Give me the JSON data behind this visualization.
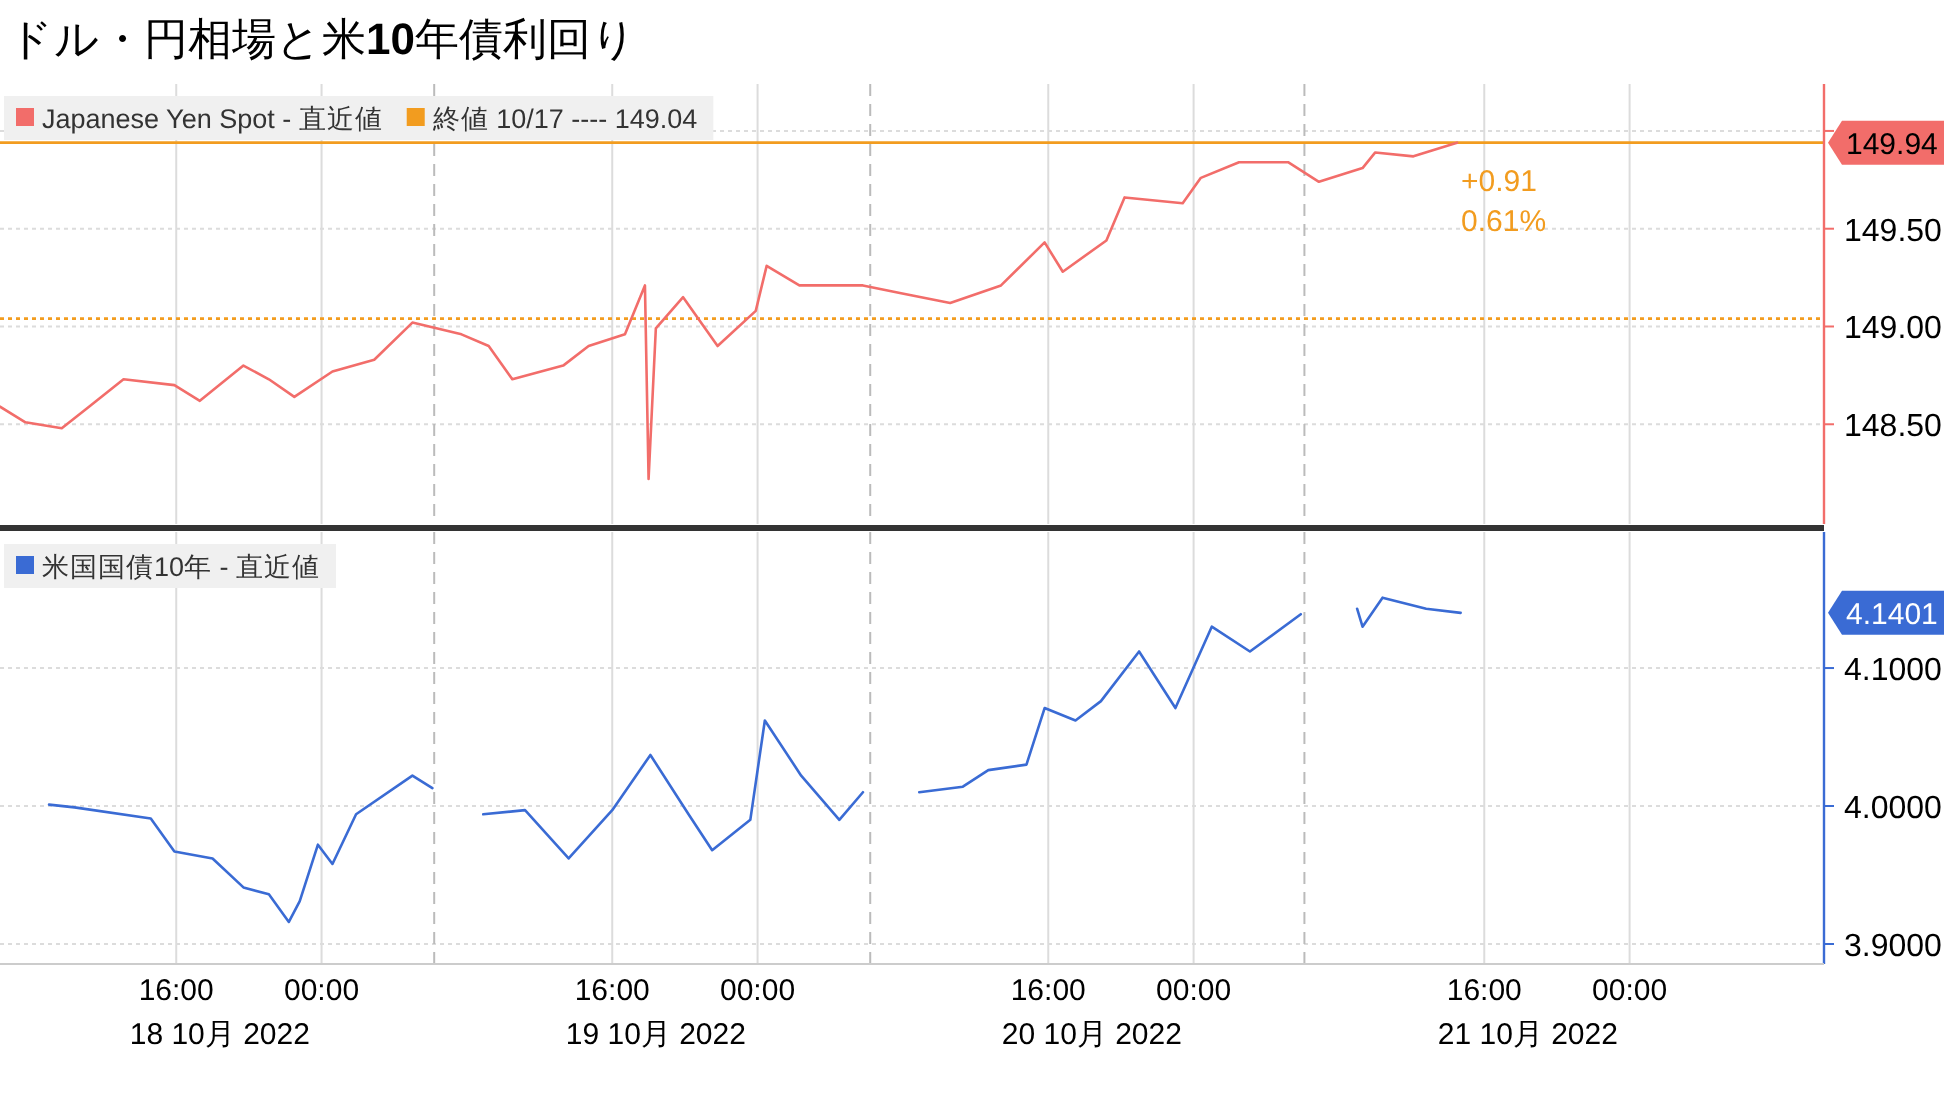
{
  "chart_data": [
    {
      "type": "line",
      "title": "ドル・円相場と米**10**年債利回り",
      "x": [
        "2022-10-18T06:18",
        "2022-10-18T07:42",
        "2022-10-18T09:42",
        "2022-10-18T11:12",
        "2022-10-18T13:06",
        "2022-10-18T15:54",
        "2022-10-18T17:18",
        "2022-10-18T19:42",
        "2022-10-18T21:06",
        "2022-10-18T22:30",
        "2022-10-19T00:36",
        "2022-10-19T02:54",
        "2022-10-19T05:00",
        "2022-10-19T07:42",
        "2022-10-19T09:12",
        "2022-10-19T10:30",
        "2022-10-19T13:18",
        "2022-10-19T14:42",
        "2022-10-19T16:42",
        "2022-10-19T17:48",
        "2022-10-19T18:00",
        "2022-10-19T18:24",
        "2022-10-19T19:54",
        "2022-10-19T21:48",
        "2022-10-19T23:54",
        "2022-10-20T00:30",
        "2022-10-20T02:18",
        "2022-10-20T05:48",
        "2022-10-20T07:54",
        "2022-10-20T10:36",
        "2022-10-20T13:24",
        "2022-10-20T15:48",
        "2022-10-20T16:48",
        "2022-10-20T19:12",
        "2022-10-20T20:12",
        "2022-10-20T23:24",
        "2022-10-21T00:24",
        "2022-10-21T02:30",
        "2022-10-21T05:12",
        "2022-10-21T06:54",
        "2022-10-21T09:18",
        "2022-10-21T10:00",
        "2022-10-21T12:06",
        "2022-10-21T14:30"
      ],
      "series": [
        {
          "name": "Japanese Yen Spot - 直近値",
          "color": "#f26d6a",
          "values": [
            148.59,
            148.51,
            148.48,
            148.59,
            148.73,
            148.7,
            148.62,
            148.8,
            148.73,
            148.64,
            148.77,
            148.83,
            149.02,
            148.96,
            148.9,
            148.73,
            148.8,
            148.9,
            148.96,
            149.21,
            148.22,
            148.99,
            149.15,
            148.9,
            149.08,
            149.31,
            149.21,
            149.21,
            149.17,
            149.12,
            149.21,
            149.43,
            149.28,
            149.44,
            149.66,
            149.63,
            149.76,
            149.84,
            149.84,
            149.74,
            149.81,
            149.89,
            149.87,
            149.94
          ]
        }
      ],
      "xlim": [
        "2022-10-18T06:18",
        "2022-10-22T10:42"
      ],
      "xticks": [
        {
          "value": "2022-10-18T16:00",
          "label": null
        },
        {
          "value": "2022-10-19T00:00",
          "label": null
        },
        {
          "value": "2022-10-19T16:00",
          "label": null
        },
        {
          "value": "2022-10-20T00:00",
          "label": null
        },
        {
          "value": "2022-10-20T16:00",
          "label": null
        },
        {
          "value": "2022-10-21T00:00",
          "label": null
        },
        {
          "value": "2022-10-21T16:00",
          "label": null
        },
        {
          "value": "2022-10-22T00:00",
          "label": null
        }
      ],
      "ylim": [
        147.99,
        150.24
      ],
      "yticks": [
        {
          "value": 148.5,
          "label": "148.50"
        },
        {
          "value": 149,
          "label": "149.00"
        },
        {
          "value": 149.5,
          "label": "149.50"
        },
        {
          "value": 150,
          "label": null
        }
      ],
      "tick_labels": "y",
      "grid": true,
      "legend": "top left",
      "ref_lines": [
        {
          "axis": "y",
          "value": 149.04,
          "label": "終値 10/17 ---- 149.04",
          "color": "#f29c1f",
          "line_style": "dotted"
        },
        {
          "axis": "y",
          "value": 149.94,
          "color": "#f29c1f",
          "line_style": "solid"
        },
        {
          "axis": "x",
          "value": "2022-10-19T06:12",
          "color": "#bbbbbb",
          "line_style": "dashed"
        },
        {
          "axis": "x",
          "value": "2022-10-20T06:12",
          "color": "#bbbbbb",
          "line_style": "dashed"
        },
        {
          "axis": "x",
          "value": "2022-10-21T06:06",
          "color": "#bbbbbb",
          "line_style": "dashed"
        }
      ],
      "annotations": [
        "149.94",
        {
          "text": "+0.91",
          "x": "2022-10-21T14:30",
          "y": 149.94
        },
        {
          "text": "0.61%",
          "x": "2022-10-21T14:30",
          "y": 149.94
        }
      ]
    },
    {
      "type": "line",
      "x": [
        "2022-10-18T09:00",
        "2022-10-18T10:24",
        "2022-10-18T14:36",
        "2022-10-18T15:54",
        "2022-10-18T18:00",
        "2022-10-18T19:42",
        "2022-10-18T21:06",
        "2022-10-18T22:12",
        "2022-10-18T22:48",
        "2022-10-18T23:48",
        "2022-10-19T00:36",
        "2022-10-19T01:54",
        "2022-10-19T05:00",
        "2022-10-19T06:06",
        "2022-10-19T07:30",
        "2022-10-19T08:54",
        "2022-10-19T11:12",
        "2022-10-19T13:36",
        "2022-10-19T16:00",
        "2022-10-19T18:06",
        "2022-10-19T20:12",
        "2022-10-19T21:30",
        "2022-10-19T23:36",
        "2022-10-20T00:24",
        "2022-10-20T02:24",
        "2022-10-20T04:30",
        "2022-10-20T05:48",
        "2022-10-20T07:18",
        "2022-10-20T08:54",
        "2022-10-20T11:18",
        "2022-10-20T12:42",
        "2022-10-20T14:48",
        "2022-10-20T15:48",
        "2022-10-20T17:30",
        "2022-10-20T18:54",
        "2022-10-20T21:00",
        "2022-10-20T23:00",
        "2022-10-21T01:00",
        "2022-10-21T03:06",
        "2022-10-21T05:54",
        "2022-10-21T07:30",
        "2022-10-21T09:00",
        "2022-10-21T09:18",
        "2022-10-21T10:24",
        "2022-10-21T12:48",
        "2022-10-21T14:42"
      ],
      "series": [
        {
          "name": "米国国債10年 - 直近値",
          "color": "#3a6bd4",
          "values": [
            4.001,
            3.999,
            3.991,
            3.967,
            3.962,
            3.941,
            3.936,
            3.916,
            3.931,
            3.972,
            3.958,
            3.994,
            4.022,
            4.013,
            null,
            3.994,
            3.997,
            3.962,
            3.997,
            4.037,
            3.994,
            3.968,
            3.99,
            4.062,
            4.022,
            3.99,
            4.01,
            null,
            4.01,
            4.014,
            4.026,
            4.03,
            4.071,
            4.062,
            4.076,
            4.112,
            4.071,
            4.13,
            4.112,
            4.139,
            null,
            4.143,
            4.13,
            4.151,
            4.143,
            4.14
          ]
        }
      ],
      "xlim": [
        "2022-10-18T06:18",
        "2022-10-22T10:42"
      ],
      "xticks": [
        {
          "value": "2022-10-18T16:00",
          "label": "16:00"
        },
        {
          "value": "2022-10-19T00:00",
          "label": "00:00"
        },
        {
          "value": "2022-10-19T16:00",
          "label": "16:00"
        },
        {
          "value": "2022-10-20T00:00",
          "label": "00:00"
        },
        {
          "value": "2022-10-20T16:00",
          "label": "16:00"
        },
        {
          "value": "2022-10-21T00:00",
          "label": "00:00"
        },
        {
          "value": "2022-10-21T16:00",
          "label": "16:00"
        },
        {
          "value": "2022-10-22T00:00",
          "label": "00:00"
        }
      ],
      "ylim": [
        3.8855,
        4.1986
      ],
      "yticks": [
        {
          "value": 3.9,
          "label": "3.9000"
        },
        {
          "value": 4.0,
          "label": "4.0000"
        },
        {
          "value": 4.1,
          "label": "4.1000"
        }
      ],
      "grid": true,
      "legend": "top left",
      "ref_lines": [
        {
          "axis": "x",
          "value": "2022-10-19T06:12",
          "color": "#bbbbbb",
          "line_style": "dashed"
        },
        {
          "axis": "x",
          "value": "2022-10-20T06:12",
          "color": "#bbbbbb",
          "line_style": "dashed"
        },
        {
          "axis": "x",
          "value": "2022-10-21T06:06",
          "color": "#bbbbbb",
          "line_style": "dashed"
        }
      ],
      "annotations": [
        "4.1401",
        "18 10月 2022",
        "19 10月 2022",
        "20 10月 2022",
        "21 10月 2022"
      ]
    }
  ]
}
